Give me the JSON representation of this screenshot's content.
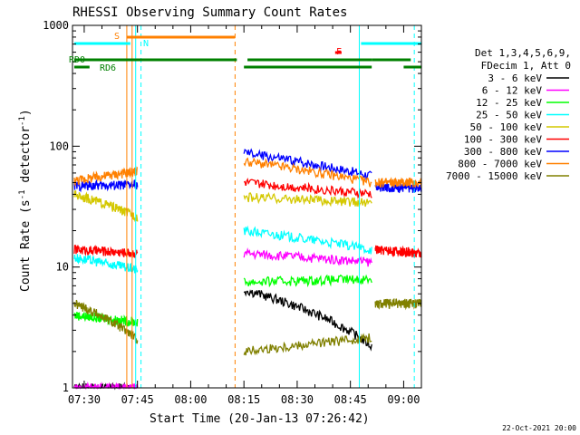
{
  "chart_data": {
    "type": "line",
    "title": "RHESSI Observing Summary Count Rates",
    "xlabel": "Start Time (20-Jan-13 07:26:42)",
    "ylabel_main": "Count Rate (s",
    "ylabel_sup1": "-1",
    "ylabel_mid": " detector",
    "ylabel_sup2": "-1",
    "ylabel_end": ")",
    "yscale": "log",
    "ylim": [
      1,
      1000
    ],
    "xlim_minutes": [
      446.7,
      545.0
    ],
    "x_ticks": [
      {
        "label": "07:30",
        "minutes": 450
      },
      {
        "label": "07:45",
        "minutes": 465
      },
      {
        "label": "08:00",
        "minutes": 480
      },
      {
        "label": "08:15",
        "minutes": 495
      },
      {
        "label": "08:30",
        "minutes": 510
      },
      {
        "label": "08:45",
        "minutes": 525
      },
      {
        "label": "09:00",
        "minutes": 540
      }
    ],
    "y_ticks": [
      {
        "label": "1",
        "value": 1
      },
      {
        "label": "10",
        "value": 10
      },
      {
        "label": "100",
        "value": 100
      },
      {
        "label": "1000",
        "value": 1000
      }
    ],
    "legend_header": [
      "Det 1,3,4,5,6,9,",
      "FDecim 1, Att 0"
    ],
    "series": [
      {
        "name": "3 - 6 keV",
        "color": "#000000",
        "segments": [
          {
            "t": [
              447.2,
              465.0
            ],
            "y0": 1.0,
            "y1": 1.0
          },
          {
            "t": [
              495.0,
              531.0
            ],
            "y0": 6.5,
            "y1": 2.2
          }
        ]
      },
      {
        "name": "6 - 12 keV",
        "color": "#ff00ff",
        "segments": [
          {
            "t": [
              447.2,
              465.0
            ],
            "y0": 1.0,
            "y1": 1.0
          },
          {
            "t": [
              495.0,
              531.0
            ],
            "y0": 13.0,
            "y1": 11.0
          }
        ]
      },
      {
        "name": "12 - 25 keV",
        "color": "#00ff00",
        "segments": [
          {
            "t": [
              447.2,
              465.0
            ],
            "y0": 4.0,
            "y1": 3.5
          },
          {
            "t": [
              495.0,
              531.0
            ],
            "y0": 7.5,
            "y1": 8.0
          }
        ]
      },
      {
        "name": "25 - 50 keV",
        "color": "#00ffff",
        "segments": [
          {
            "t": [
              447.2,
              465.0
            ],
            "y0": 12.0,
            "y1": 9.5
          },
          {
            "t": [
              495.0,
              531.0
            ],
            "y0": 20.0,
            "y1": 14.0
          }
        ]
      },
      {
        "name": "50 - 100 keV",
        "color": "#d4c800",
        "segments": [
          {
            "t": [
              447.2,
              465.0
            ],
            "y0": 40.0,
            "y1": 26.0
          },
          {
            "t": [
              495.0,
              531.0
            ],
            "y0": 38.0,
            "y1": 34.0
          }
        ]
      },
      {
        "name": "100 - 300 keV",
        "color": "#ff0000",
        "segments": [
          {
            "t": [
              447.2,
              465.0
            ],
            "y0": 14.0,
            "y1": 13.0
          },
          {
            "t": [
              495.0,
              531.0
            ],
            "y0": 50.0,
            "y1": 40.0
          },
          {
            "t": [
              532.0,
              545.0
            ],
            "y0": 14.0,
            "y1": 13.0
          }
        ]
      },
      {
        "name": "300 - 800 keV",
        "color": "#0000ff",
        "segments": [
          {
            "t": [
              447.2,
              465.0
            ],
            "y0": 47.0,
            "y1": 48.0
          },
          {
            "t": [
              495.0,
              531.0
            ],
            "y0": 88.0,
            "y1": 57.0
          },
          {
            "t": [
              532.0,
              545.0
            ],
            "y0": 46.0,
            "y1": 45.0
          }
        ]
      },
      {
        "name": "800 - 7000 keV",
        "color": "#ff8000",
        "segments": [
          {
            "t": [
              447.2,
              465.0
            ],
            "y0": 52.0,
            "y1": 62.0
          },
          {
            "t": [
              495.0,
              531.0
            ],
            "y0": 75.0,
            "y1": 50.0
          },
          {
            "t": [
              532.0,
              545.0
            ],
            "y0": 50.0,
            "y1": 50.0
          }
        ]
      },
      {
        "name": "7000 - 15000 keV",
        "color": "#808000",
        "segments": [
          {
            "t": [
              447.2,
              465.0
            ],
            "y0": 5.0,
            "y1": 2.5
          },
          {
            "t": [
              495.0,
              531.0
            ],
            "y0": 2.0,
            "y1": 2.6
          },
          {
            "t": [
              532.0,
              545.0
            ],
            "y0": 5.0,
            "y1": 5.0
          }
        ]
      }
    ],
    "annotations": {
      "s_label": "S",
      "n_label": "N",
      "f_label": "F",
      "rd0_label": "RD0",
      "rd6_label": "RD6"
    },
    "flag_bars": {
      "rd0": [
        [
          447.2,
          493.0
        ],
        [
          496.0,
          531.0
        ],
        [
          531.0,
          542.0
        ]
      ],
      "rd6": [
        [
          447.2,
          451.5
        ],
        [
          495.0,
          531.0
        ],
        [
          540.0,
          545.0
        ]
      ],
      "s_saa": [
        [
          462.0,
          492.5
        ]
      ],
      "n_night": [
        [
          447.2,
          463.0
        ],
        [
          528.0,
          545.0
        ]
      ],
      "f_flare": [
        [
          520.7,
          522.5
        ]
      ]
    },
    "vertical_lines": [
      {
        "minutes": 462.0,
        "color": "#ff8000",
        "style": "solid"
      },
      {
        "minutes": 463.5,
        "color": "#ff8000",
        "style": "solid"
      },
      {
        "minutes": 464.5,
        "color": "#00ffff",
        "style": "solid"
      },
      {
        "minutes": 466.0,
        "color": "#00ffff",
        "style": "dashed"
      },
      {
        "minutes": 492.5,
        "color": "#ff8000",
        "style": "dashed"
      },
      {
        "minutes": 527.5,
        "color": "#00ffff",
        "style": "solid"
      },
      {
        "minutes": 543.0,
        "color": "#00ffff",
        "style": "dashed"
      }
    ],
    "footer_date": "22-Oct-2021 20:00"
  }
}
